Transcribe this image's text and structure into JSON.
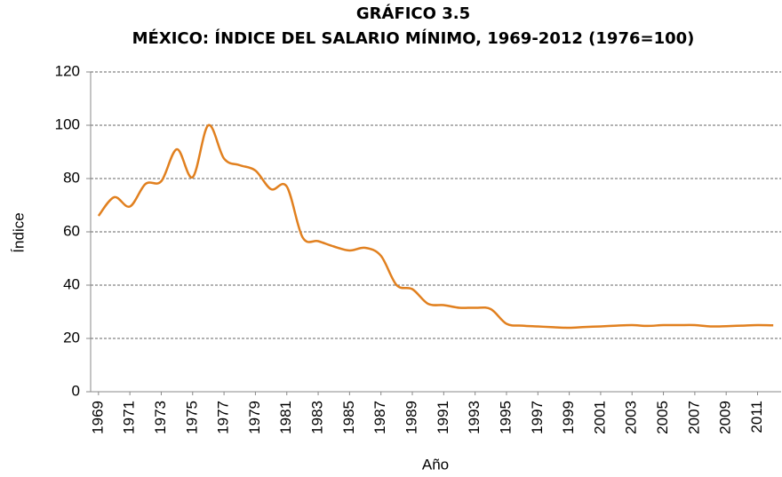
{
  "chart_data": {
    "type": "line",
    "title": "GRÁFICO 3.5",
    "subtitle": "MÉXICO: ÍNDICE DEL SALARIO MÍNIMO, 1969-2012 (1976=100)",
    "x_label": "Año",
    "y_label": "Índice",
    "x": [
      1969,
      1970,
      1971,
      1972,
      1973,
      1974,
      1975,
      1976,
      1977,
      1978,
      1979,
      1980,
      1981,
      1982,
      1983,
      1984,
      1985,
      1986,
      1987,
      1988,
      1989,
      1990,
      1991,
      1992,
      1993,
      1994,
      1995,
      1996,
      1997,
      1998,
      1999,
      2000,
      2001,
      2002,
      2003,
      2004,
      2005,
      2006,
      2007,
      2008,
      2009,
      2010,
      2011,
      2012
    ],
    "series": [
      {
        "name": "Índice",
        "color": "#e1801f",
        "values": [
          66,
          73,
          69.5,
          78,
          79,
          91,
          80.5,
          100,
          87.5,
          85,
          83,
          76,
          77,
          58,
          56.5,
          54.5,
          53,
          54,
          51,
          40,
          38.5,
          33,
          32.5,
          31.5,
          31.5,
          31,
          25.5,
          24.8,
          24.5,
          24.2,
          24,
          24.3,
          24.5,
          24.8,
          25,
          24.7,
          25,
          25,
          25,
          24.5,
          24.6,
          24.8,
          25,
          24.9
        ]
      }
    ],
    "xlim": [
      1968.5,
      2012.5
    ],
    "xticks": [
      1969,
      1971,
      1973,
      1975,
      1977,
      1979,
      1981,
      1983,
      1985,
      1987,
      1989,
      1991,
      1993,
      1995,
      1997,
      1999,
      2001,
      2003,
      2005,
      2007,
      2009,
      2011
    ],
    "ylim": [
      0,
      120
    ],
    "yticks": [
      0,
      20,
      40,
      60,
      80,
      100,
      120
    ],
    "grid": true
  }
}
